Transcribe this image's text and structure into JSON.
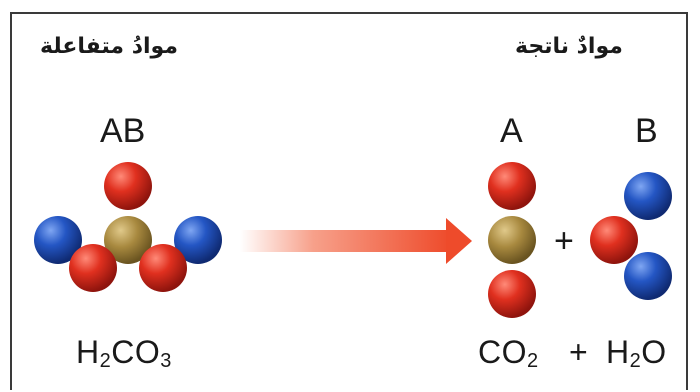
{
  "reactants": {
    "header": "موادُ متفاعلة",
    "label": "AB",
    "formula": {
      "p1": "H",
      "s1": "2",
      "p2": "CO",
      "s2": "3"
    }
  },
  "products": {
    "header": "موادٌ ناتجة",
    "label_a": "A",
    "label_b": "B",
    "plus_molecules": "+",
    "formula_a": {
      "p1": "CO",
      "s1": "2"
    },
    "formula_plus": "+",
    "formula_b": {
      "p1": "H",
      "s1": "2",
      "p2": "O"
    }
  },
  "colors": {
    "red_atom": "#d92a1f",
    "blue_atom": "#1f4fb5",
    "gold_atom": "#a88a44",
    "arrow": "#ee4b2b"
  }
}
